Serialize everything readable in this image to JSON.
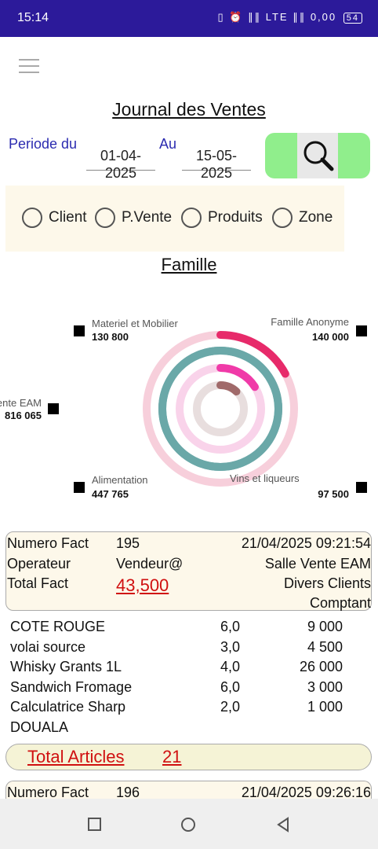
{
  "status_bar": {
    "time": "15:14",
    "icons_text": "▯ ⏰ ∥∥ LTE ∥∥ 0,00",
    "battery": "54"
  },
  "header": {
    "title": "Journal des Ventes"
  },
  "period": {
    "from_label": "Periode du",
    "from_value": "01-04-2025",
    "to_label": "Au",
    "to_value": "15-05-2025"
  },
  "filters": [
    {
      "label": "Client"
    },
    {
      "label": "P.Vente"
    },
    {
      "label": "Produits"
    },
    {
      "label": "Zone"
    }
  ],
  "section_title": "Famille",
  "chart_data": {
    "type": "pie",
    "series": [
      {
        "name": "Materiel et Mobilier",
        "value": 130800
      },
      {
        "name": "Famille Anonyme",
        "value": 140000
      },
      {
        "name": "ente EAM",
        "value": 816065
      },
      {
        "name": "Alimentation",
        "value": 447765
      },
      {
        "name": "Vins et liqueurs",
        "value": 97500
      }
    ],
    "labels": [
      {
        "name": "Materiel et Mobilier",
        "value": "130 800"
      },
      {
        "name": "Famille Anonyme",
        "value": "140 000"
      },
      {
        "name": "ente EAM",
        "value": "816 065"
      },
      {
        "name": "Alimentation",
        "value": "447 765"
      },
      {
        "name": "Vins et liqueurs",
        "value": "97 500"
      }
    ],
    "colors": [
      "#a06a6a",
      "#e72a8a",
      "#6aa8a8",
      "#f7b8cc",
      "#e0d6d6"
    ]
  },
  "invoices": [
    {
      "numero_label": "Numero Fact",
      "numero": "195",
      "datetime": "21/04/2025 09:21:54",
      "operateur_label": "Operateur",
      "operateur": "Vendeur@",
      "salle": "Salle Vente EAM",
      "total_label": "Total Fact",
      "total": "43,500",
      "client": "Divers Clients",
      "mode": "Comptant",
      "items": [
        {
          "name": "COTE ROUGE",
          "qty": "6,0",
          "amount": "9 000"
        },
        {
          "name": "volai source",
          "qty": "3,0",
          "amount": "4 500"
        },
        {
          "name": "Whisky Grants 1L",
          "qty": "4,0",
          "amount": "26 000"
        },
        {
          "name": "Sandwich Fromage",
          "qty": "6,0",
          "amount": "3 000"
        },
        {
          "name": "Calculatrice Sharp",
          "qty": "2,0",
          "amount": "1 000"
        },
        {
          "name": "DOUALA",
          "qty": "",
          "amount": ""
        }
      ],
      "total_articles_label": "Total Articles",
      "total_articles": "21"
    },
    {
      "numero_label": "Numero Fact",
      "numero": "196",
      "datetime": "21/04/2025 09:26:16"
    }
  ]
}
